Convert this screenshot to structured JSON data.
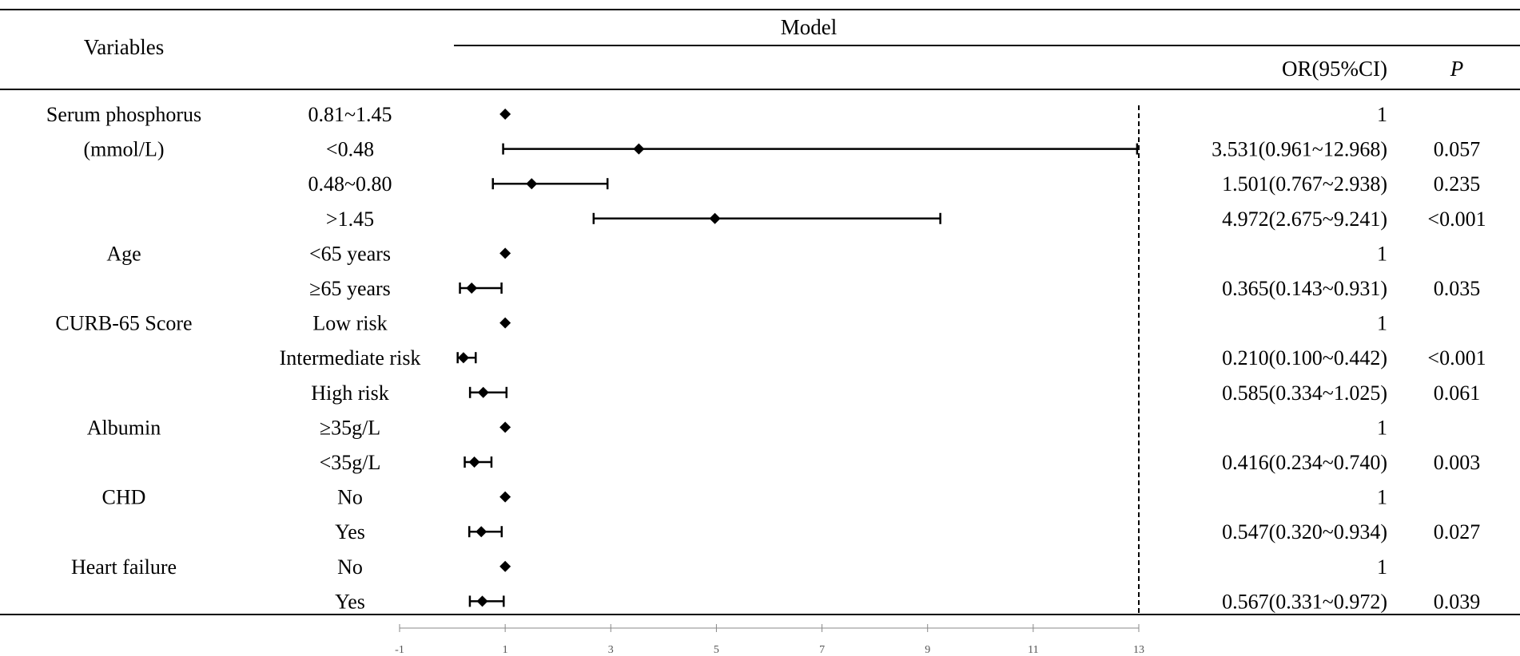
{
  "header": {
    "variables": "Variables",
    "model": "Model",
    "or_ci": "OR(95%CI)",
    "p": "P"
  },
  "chart_data": {
    "type": "forest",
    "x_ticks": [
      -1,
      1,
      3,
      5,
      7,
      9,
      11,
      13
    ],
    "xlim": [
      -1,
      13
    ],
    "reference_line": 13,
    "rows": [
      {
        "variable": [
          "Serum phosphorus",
          "(mmol/L)"
        ],
        "level": "0.81~1.45",
        "or": 1,
        "lo": null,
        "hi": null,
        "or_text": "1",
        "p": ""
      },
      {
        "variable": [],
        "level": "<0.48",
        "or": 3.531,
        "lo": 0.961,
        "hi": 12.968,
        "or_text": "3.531(0.961~12.968)",
        "p": "0.057"
      },
      {
        "variable": [],
        "level": "0.48~0.80",
        "or": 1.501,
        "lo": 0.767,
        "hi": 2.938,
        "or_text": "1.501(0.767~2.938)",
        "p": "0.235"
      },
      {
        "variable": [],
        "level": ">1.45",
        "or": 4.972,
        "lo": 2.675,
        "hi": 9.241,
        "or_text": "4.972(2.675~9.241)",
        "p": "<0.001"
      },
      {
        "variable": [
          "Age"
        ],
        "level": "<65 years",
        "or": 1,
        "lo": null,
        "hi": null,
        "or_text": "1",
        "p": ""
      },
      {
        "variable": [],
        "level": "≥65 years",
        "or": 0.365,
        "lo": 0.143,
        "hi": 0.931,
        "or_text": "0.365(0.143~0.931)",
        "p": "0.035"
      },
      {
        "variable": [
          "CURB-65  Score"
        ],
        "level": "Low risk",
        "or": 1,
        "lo": null,
        "hi": null,
        "or_text": "1",
        "p": ""
      },
      {
        "variable": [],
        "level": "Intermediate risk",
        "or": 0.21,
        "lo": 0.1,
        "hi": 0.442,
        "or_text": "0.210(0.100~0.442)",
        "p": "<0.001"
      },
      {
        "variable": [],
        "level": "High risk",
        "or": 0.585,
        "lo": 0.334,
        "hi": 1.025,
        "or_text": "0.585(0.334~1.025)",
        "p": "0.061"
      },
      {
        "variable": [
          "Albumin"
        ],
        "level": "≥35g/L",
        "or": 1,
        "lo": null,
        "hi": null,
        "or_text": "1",
        "p": ""
      },
      {
        "variable": [],
        "level": "<35g/L",
        "or": 0.416,
        "lo": 0.234,
        "hi": 0.74,
        "or_text": "0.416(0.234~0.740)",
        "p": "0.003"
      },
      {
        "variable": [
          "CHD"
        ],
        "level": "No",
        "or": 1,
        "lo": null,
        "hi": null,
        "or_text": "1",
        "p": ""
      },
      {
        "variable": [],
        "level": "Yes",
        "or": 0.547,
        "lo": 0.32,
        "hi": 0.934,
        "or_text": "0.547(0.320~0.934)",
        "p": "0.027"
      },
      {
        "variable": [
          "Heart failure"
        ],
        "level": "No",
        "or": 1,
        "lo": null,
        "hi": null,
        "or_text": "1",
        "p": ""
      },
      {
        "variable": [],
        "level": "Yes",
        "or": 0.567,
        "lo": 0.331,
        "hi": 0.972,
        "or_text": "0.567(0.331~0.972)",
        "p": "0.039"
      }
    ]
  }
}
